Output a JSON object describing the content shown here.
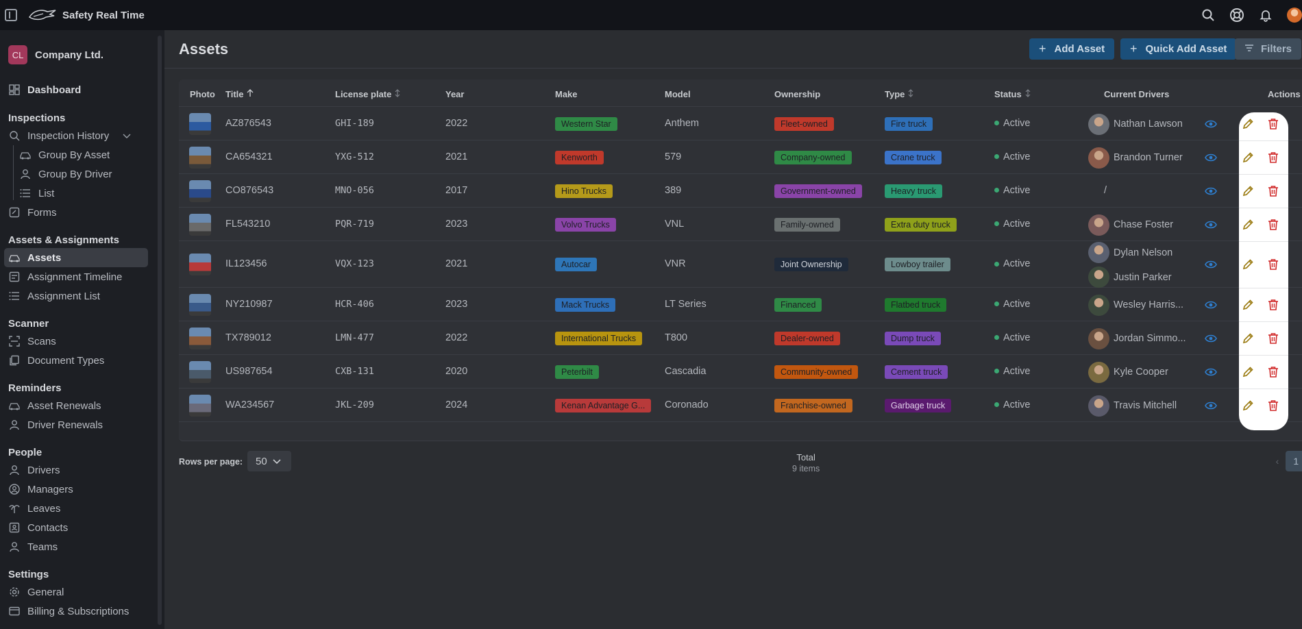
{
  "app": {
    "title": "Safety Real Time"
  },
  "company": {
    "initials": "CL",
    "name": "Company Ltd."
  },
  "sidebar": {
    "dashboard": "Dashboard",
    "inspections_head": "Inspections",
    "inspection_history": "Inspection History",
    "group_by_asset": "Group By Asset",
    "group_by_driver": "Group By Driver",
    "list": "List",
    "forms": "Forms",
    "assets_head": "Assets & Assignments",
    "assets": "Assets",
    "assignment_timeline": "Assignment Timeline",
    "assignment_list": "Assignment List",
    "scanner_head": "Scanner",
    "scans": "Scans",
    "document_types": "Document Types",
    "reminders_head": "Reminders",
    "asset_renewals": "Asset Renewals",
    "driver_renewals": "Driver Renewals",
    "people_head": "People",
    "drivers": "Drivers",
    "managers": "Managers",
    "leaves": "Leaves",
    "contacts": "Contacts",
    "teams": "Teams",
    "settings_head": "Settings",
    "general": "General",
    "billing": "Billing & Subscriptions"
  },
  "page": {
    "title": "Assets",
    "add_asset": "Add Asset",
    "quick_add_asset": "Quick Add Asset",
    "filters": "Filters"
  },
  "table": {
    "headers": {
      "photo": "Photo",
      "title": "Title",
      "license": "License plate",
      "year": "Year",
      "make": "Make",
      "model": "Model",
      "ownership": "Ownership",
      "type": "Type",
      "status": "Status",
      "drivers": "Current Drivers",
      "actions": "Actions"
    },
    "rows": [
      {
        "title": "AZ876543",
        "plate": "GHI-189",
        "year": "2022",
        "make": "Western Star",
        "make_color": "#2f8a46",
        "model": "Anthem",
        "ownership": "Fleet-owned",
        "own_color": "#c0392b",
        "type": "Fire truck",
        "type_color": "#2e6fb8",
        "status": "Active",
        "drivers": [
          "Nathan Lawson"
        ]
      },
      {
        "title": "CA654321",
        "plate": "YXG-512",
        "year": "2021",
        "make": "Kenworth",
        "make_color": "#c0392b",
        "model": "579",
        "ownership": "Company-owned",
        "own_color": "#2f8a46",
        "type": "Crane truck",
        "type_color": "#3b73c9",
        "status": "Active",
        "drivers": [
          "Brandon Turner"
        ]
      },
      {
        "title": "CO876543",
        "plate": "MNO-056",
        "year": "2017",
        "make": "Hino Trucks",
        "make_color": "#b59a1a",
        "model": "389",
        "ownership": "Government-owned",
        "own_color": "#8a44a8",
        "type": "Heavy truck",
        "type_color": "#2a9a72",
        "status": "Active",
        "drivers": [
          "/"
        ]
      },
      {
        "title": "FL543210",
        "plate": "PQR-719",
        "year": "2023",
        "make": "Volvo Trucks",
        "make_color": "#8a44a8",
        "model": "VNL",
        "ownership": "Family-owned",
        "own_color": "#6a7070",
        "type": "Extra duty truck",
        "type_color": "#8fa11a",
        "status": "Active",
        "drivers": [
          "Chase Foster"
        ]
      },
      {
        "title": "IL123456",
        "plate": "VQX-123",
        "year": "2021",
        "make": "Autocar",
        "make_color": "#2e76b8",
        "model": "VNR",
        "ownership": "Joint Ownership",
        "own_color": "#1f2a3a",
        "type": "Lowboy trailer",
        "type_color": "#6d8c8c",
        "status": "Active",
        "drivers": [
          "Dylan Nelson",
          "Justin Parker"
        ]
      },
      {
        "title": "NY210987",
        "plate": "HCR-406",
        "year": "2023",
        "make": "Mack Trucks",
        "make_color": "#2e6fb8",
        "model": "LT Series",
        "ownership": "Financed",
        "own_color": "#2f8a46",
        "type": "Flatbed truck",
        "type_color": "#1f7a2e",
        "status": "Active",
        "drivers": [
          "Wesley Harris..."
        ]
      },
      {
        "title": "TX789012",
        "plate": "LMN-477",
        "year": "2022",
        "make": "International Trucks",
        "make_color": "#b8940f",
        "model": "T800",
        "ownership": "Dealer-owned",
        "own_color": "#c0392b",
        "type": "Dump truck",
        "type_color": "#7a4ab8",
        "status": "Active",
        "drivers": [
          "Jordan Simmo..."
        ]
      },
      {
        "title": "US987654",
        "plate": "CXB-131",
        "year": "2020",
        "make": "Peterbilt",
        "make_color": "#2f8a46",
        "model": "Cascadia",
        "ownership": "Community-owned",
        "own_color": "#c2570f",
        "type": "Cement truck",
        "type_color": "#7a4ab8",
        "status": "Active",
        "drivers": [
          "Kyle Cooper"
        ]
      },
      {
        "title": "WA234567",
        "plate": "JKL-209",
        "year": "2024",
        "make": "Kenan Advantage G...",
        "make_color": "#b83a3a",
        "model": "Coronado",
        "ownership": "Franchise-owned",
        "own_color": "#c2671f",
        "type": "Garbage truck",
        "type_color": "#5a1a6e",
        "status": "Active",
        "drivers": [
          "Travis Mitchell"
        ]
      }
    ]
  },
  "footer": {
    "rows_per_page_label": "Rows per page:",
    "rows_per_page": "50",
    "total_label": "Total",
    "total_items": "9 items",
    "current_page": "1"
  }
}
